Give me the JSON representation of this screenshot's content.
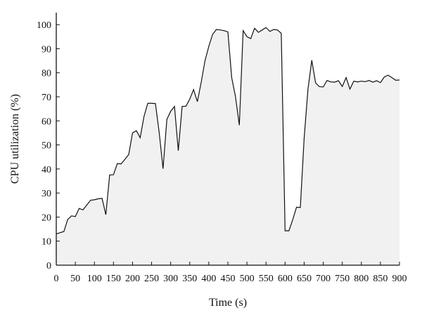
{
  "chart_data": {
    "type": "area",
    "xlabel": "Time (s)",
    "ylabel": "CPU utilization (%)",
    "xlim": [
      0,
      900
    ],
    "ylim": [
      0,
      105
    ],
    "xticks": [
      0,
      50,
      100,
      150,
      200,
      250,
      300,
      350,
      400,
      450,
      500,
      550,
      600,
      650,
      700,
      750,
      800,
      850,
      900
    ],
    "yticks": [
      0,
      10,
      20,
      30,
      40,
      50,
      60,
      70,
      80,
      90,
      100
    ],
    "grid": false,
    "colors": {
      "fill": "#f1f1f1",
      "line": "#111111",
      "axis": "#111111"
    },
    "series": [
      {
        "x": [
          0,
          10,
          20,
          30,
          40,
          50,
          60,
          70,
          80,
          90,
          100,
          110,
          120,
          130,
          140,
          150,
          160,
          170,
          180,
          190,
          200,
          210,
          220,
          230,
          240,
          250,
          260,
          270,
          280,
          290,
          300,
          310,
          320,
          330,
          340,
          350,
          360,
          370,
          380,
          390,
          400,
          410,
          420,
          430,
          440,
          450,
          460,
          470,
          480,
          490,
          500,
          510,
          520,
          530,
          540,
          550,
          560,
          570,
          580,
          590,
          600,
          610,
          620,
          630,
          640,
          650,
          660,
          670,
          680,
          690,
          700,
          710,
          720,
          730,
          740,
          750,
          760,
          770,
          780,
          790,
          800,
          810,
          820,
          830,
          840,
          850,
          860,
          870,
          880,
          890,
          900
        ],
        "values": [
          13,
          13.5,
          14,
          19,
          20.5,
          20.2,
          23.6,
          23,
          25,
          27,
          27.2,
          27.6,
          27.8,
          21,
          37.5,
          37.6,
          42.2,
          42.1,
          44,
          46,
          55,
          55.9,
          53,
          61.8,
          67.3,
          67.3,
          67.2,
          55,
          40.1,
          60.6,
          64,
          66,
          47.6,
          66,
          66.1,
          69,
          73,
          68,
          76,
          85,
          91,
          96,
          98,
          97.8,
          97.5,
          97,
          78,
          70,
          58.2,
          97.5,
          95,
          94.2,
          98.5,
          96.8,
          97.8,
          98.8,
          97.2,
          98,
          97.8,
          96.4,
          14.3,
          14.3,
          18.9,
          24.1,
          24,
          52.8,
          73.2,
          85.2,
          75.8,
          74.2,
          74.1,
          76.8,
          76.2,
          76.1,
          76.7,
          74.3,
          78,
          73.2,
          76.5,
          76.2,
          76.5,
          76.3,
          76.8,
          76.1,
          76.7,
          75.9,
          78.2,
          79,
          78,
          76.9,
          77
        ]
      }
    ]
  }
}
